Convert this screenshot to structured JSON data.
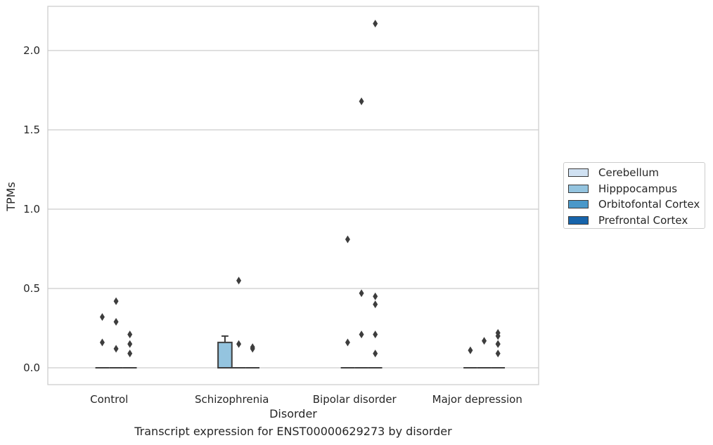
{
  "caption": "Transcript expression for ENST00000629273 by disorder",
  "chart_data": {
    "type": "box",
    "title": "",
    "xlabel": "Disorder",
    "ylabel": "TPMs",
    "ylim": [
      -0.1,
      2.28
    ],
    "yticks": [
      0.0,
      0.5,
      1.0,
      1.5,
      2.0
    ],
    "ytick_labels": [
      "0.0",
      "0.5",
      "1.0",
      "1.5",
      "2.0"
    ],
    "grid": "horizontal",
    "legend_position": "right",
    "categories": [
      "Control",
      "Schizophrenia",
      "Bipolar disorder",
      "Major depression"
    ],
    "series": [
      {
        "name": "Cerebellum",
        "color": "#d0e1f2"
      },
      {
        "name": "Hipppocampus",
        "color": "#94c4df"
      },
      {
        "name": "Orbitofontal Cortex",
        "color": "#4a98c9"
      },
      {
        "name": "Prefrontal Cortex",
        "color": "#1764ab"
      }
    ],
    "boxes": [
      {
        "category": "Control",
        "series": "Hipppocampus",
        "q1": 0.0,
        "median": 0.0,
        "q3": 0.0,
        "whisker_low": 0.0,
        "whisker_high": 0.0,
        "outliers": [
          0.32,
          0.16
        ]
      },
      {
        "category": "Control",
        "series": "Orbitofontal Cortex",
        "q1": 0.0,
        "median": 0.0,
        "q3": 0.0,
        "whisker_low": 0.0,
        "whisker_high": 0.0,
        "outliers": [
          0.42,
          0.29,
          0.12
        ]
      },
      {
        "category": "Control",
        "series": "Prefrontal Cortex",
        "q1": 0.0,
        "median": 0.0,
        "q3": 0.0,
        "whisker_low": 0.0,
        "whisker_high": 0.0,
        "outliers": [
          0.21,
          0.15,
          0.09
        ]
      },
      {
        "category": "Schizophrenia",
        "series": "Hipppocampus",
        "q1": 0.0,
        "median": 0.0,
        "q3": 0.16,
        "whisker_low": 0.0,
        "whisker_high": 0.2,
        "outliers": []
      },
      {
        "category": "Schizophrenia",
        "series": "Orbitofontal Cortex",
        "q1": 0.0,
        "median": 0.0,
        "q3": 0.0,
        "whisker_low": 0.0,
        "whisker_high": 0.0,
        "outliers": [
          0.55,
          0.15
        ]
      },
      {
        "category": "Schizophrenia",
        "series": "Prefrontal Cortex",
        "q1": 0.0,
        "median": 0.0,
        "q3": 0.0,
        "whisker_low": 0.0,
        "whisker_high": 0.0,
        "outliers": [
          0.13,
          0.12
        ]
      },
      {
        "category": "Bipolar disorder",
        "series": "Hipppocampus",
        "q1": 0.0,
        "median": 0.0,
        "q3": 0.0,
        "whisker_low": 0.0,
        "whisker_high": 0.0,
        "outliers": [
          0.81,
          0.16
        ]
      },
      {
        "category": "Bipolar disorder",
        "series": "Orbitofontal Cortex",
        "q1": 0.0,
        "median": 0.0,
        "q3": 0.0,
        "whisker_low": 0.0,
        "whisker_high": 0.0,
        "outliers": [
          1.68,
          0.47,
          0.21
        ]
      },
      {
        "category": "Bipolar disorder",
        "series": "Prefrontal Cortex",
        "q1": 0.0,
        "median": 0.0,
        "q3": 0.0,
        "whisker_low": 0.0,
        "whisker_high": 0.0,
        "outliers": [
          0.21,
          0.09
        ]
      },
      {
        "category": "Bipolar disorder",
        "series": "Prefrontal Cortex",
        "q1": 0.0,
        "median": 0.0,
        "q3": 0.0,
        "whisker_low": 0.0,
        "whisker_high": 0.0,
        "outliers": [
          2.17,
          0.45,
          0.4
        ],
        "slot": 3
      },
      {
        "category": "Major depression",
        "series": "Orbitofontal Cortex",
        "q1": 0.0,
        "median": 0.0,
        "q3": 0.0,
        "whisker_low": 0.0,
        "whisker_high": 0.0,
        "outliers": [
          0.17
        ]
      },
      {
        "category": "Major depression",
        "series": "Hipppocampus",
        "q1": 0.0,
        "median": 0.0,
        "q3": 0.0,
        "whisker_low": 0.0,
        "whisker_high": 0.0,
        "outliers": [
          0.11
        ]
      },
      {
        "category": "Major depression",
        "series": "Prefrontal Cortex",
        "q1": 0.0,
        "median": 0.0,
        "q3": 0.0,
        "whisker_low": 0.0,
        "whisker_high": 0.0,
        "outliers": [
          0.15,
          0.09
        ]
      },
      {
        "category": "Major depression",
        "series": "Prefrontal Cortex",
        "q1": 0.0,
        "median": 0.0,
        "q3": 0.0,
        "whisker_low": 0.0,
        "whisker_high": 0.0,
        "outliers": [
          0.22,
          0.2,
          0.15
        ],
        "slot": 3
      }
    ]
  }
}
